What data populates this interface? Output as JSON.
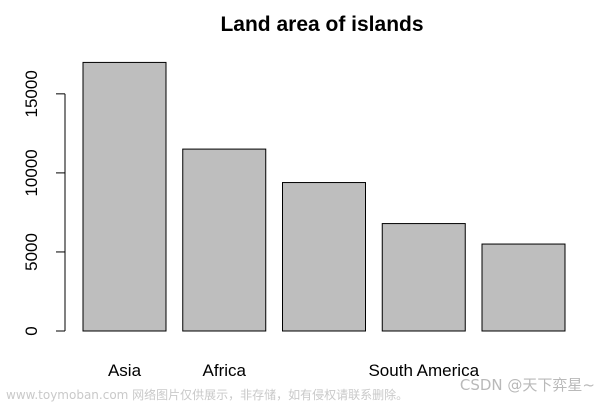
{
  "chart_data": {
    "type": "bar",
    "title": "Land area of islands",
    "xlabel": "",
    "ylabel": "",
    "categories": [
      "Asia",
      "Africa",
      "",
      "South America",
      ""
    ],
    "values": [
      16988,
      11506,
      9390,
      6795,
      5500
    ],
    "ylim": [
      0,
      17900
    ],
    "yticks": [
      0,
      5000,
      10000,
      15000
    ],
    "grid": false,
    "bar_color": "#bebebe",
    "bar_stroke": "#000000"
  },
  "watermark": {
    "left": "www.toymoban.com 网络图片仅供展示，非存储，如有侵权请联系删除。",
    "right": "CSDN @天下弈星~"
  }
}
